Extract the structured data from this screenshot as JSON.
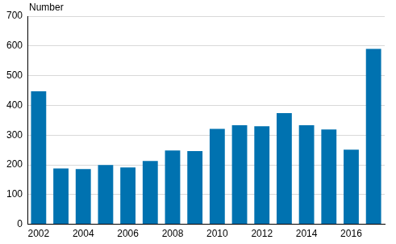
{
  "chart_data": {
    "type": "bar",
    "y_label": "Number",
    "categories": [
      "2002",
      null,
      "2004",
      null,
      "2006",
      null,
      "2008",
      null,
      "2010",
      null,
      "2012",
      null,
      "2014",
      null,
      "2016",
      null
    ],
    "values": [
      447,
      188,
      186,
      199,
      191,
      213,
      248,
      246,
      321,
      333,
      330,
      374,
      333,
      319,
      251,
      590
    ],
    "color": "#0072b0",
    "ylim": [
      0,
      700
    ],
    "yticks": [
      0,
      100,
      200,
      300,
      400,
      500,
      600,
      700
    ],
    "grid": true
  }
}
